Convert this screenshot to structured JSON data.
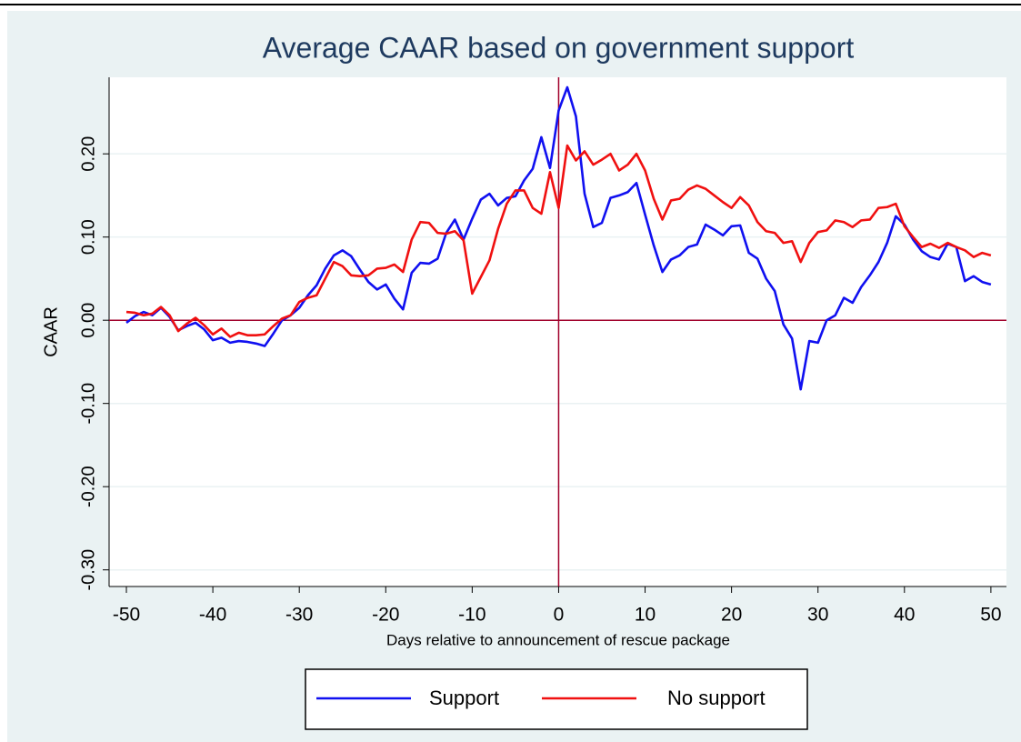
{
  "chart_data": {
    "type": "line",
    "title": "Average CAAR based on government support",
    "x_label": "Days relative to announcement of rescue package",
    "y_label": "CAAR",
    "x": [
      -50,
      -49,
      -48,
      -47,
      -46,
      -45,
      -44,
      -43,
      -42,
      -41,
      -40,
      -39,
      -38,
      -37,
      -36,
      -35,
      -34,
      -33,
      -32,
      -31,
      -30,
      -29,
      -28,
      -27,
      -26,
      -25,
      -24,
      -23,
      -22,
      -21,
      -20,
      -19,
      -18,
      -17,
      -16,
      -15,
      -14,
      -13,
      -12,
      -11,
      -10,
      -9,
      -8,
      -7,
      -6,
      -5,
      -4,
      -3,
      -2,
      -1,
      0,
      1,
      2,
      3,
      4,
      5,
      6,
      7,
      8,
      9,
      10,
      11,
      12,
      13,
      14,
      15,
      16,
      17,
      18,
      19,
      20,
      21,
      22,
      23,
      24,
      25,
      26,
      27,
      28,
      29,
      30,
      31,
      32,
      33,
      34,
      35,
      36,
      37,
      38,
      39,
      40,
      41,
      42,
      43,
      44,
      45,
      46,
      47,
      48,
      49,
      50
    ],
    "series": [
      {
        "name": "Support",
        "color": "#1010f0",
        "values": [
          -0.003,
          0.005,
          0.01,
          0.006,
          0.015,
          0.004,
          -0.012,
          -0.007,
          -0.003,
          -0.011,
          -0.024,
          -0.021,
          -0.027,
          -0.025,
          -0.026,
          -0.028,
          -0.031,
          -0.016,
          0.0,
          0.006,
          0.015,
          0.03,
          0.042,
          0.062,
          0.078,
          0.084,
          0.077,
          0.061,
          0.046,
          0.037,
          0.043,
          0.026,
          0.013,
          0.057,
          0.069,
          0.068,
          0.074,
          0.105,
          0.121,
          0.097,
          0.122,
          0.145,
          0.152,
          0.138,
          0.147,
          0.149,
          0.168,
          0.182,
          0.22,
          0.183,
          0.252,
          0.28,
          0.245,
          0.152,
          0.112,
          0.117,
          0.147,
          0.15,
          0.154,
          0.165,
          0.127,
          0.09,
          0.058,
          0.073,
          0.078,
          0.088,
          0.091,
          0.115,
          0.109,
          0.102,
          0.113,
          0.114,
          0.081,
          0.074,
          0.05,
          0.035,
          -0.005,
          -0.022,
          -0.083,
          -0.025,
          -0.027,
          0.0,
          0.006,
          0.027,
          0.021,
          0.04,
          0.054,
          0.07,
          0.093,
          0.125,
          0.115,
          0.097,
          0.083,
          0.076,
          0.073,
          0.092,
          0.088,
          0.047,
          0.053,
          0.046,
          0.043
        ]
      },
      {
        "name": "No support",
        "color": "#f01010",
        "values": [
          0.01,
          0.009,
          0.006,
          0.008,
          0.016,
          0.006,
          -0.013,
          -0.004,
          0.003,
          -0.006,
          -0.017,
          -0.01,
          -0.02,
          -0.015,
          -0.018,
          -0.018,
          -0.017,
          -0.007,
          0.002,
          0.006,
          0.022,
          0.027,
          0.03,
          0.05,
          0.07,
          0.065,
          0.054,
          0.053,
          0.054,
          0.062,
          0.063,
          0.067,
          0.058,
          0.097,
          0.118,
          0.117,
          0.105,
          0.104,
          0.107,
          0.096,
          0.032,
          0.052,
          0.072,
          0.11,
          0.14,
          0.156,
          0.156,
          0.135,
          0.128,
          0.178,
          0.135,
          0.21,
          0.192,
          0.203,
          0.187,
          0.193,
          0.2,
          0.18,
          0.187,
          0.2,
          0.18,
          0.146,
          0.121,
          0.144,
          0.146,
          0.157,
          0.162,
          0.158,
          0.15,
          0.142,
          0.135,
          0.148,
          0.138,
          0.118,
          0.107,
          0.105,
          0.093,
          0.095,
          0.07,
          0.093,
          0.106,
          0.108,
          0.12,
          0.118,
          0.112,
          0.12,
          0.121,
          0.135,
          0.136,
          0.14,
          0.113,
          0.1,
          0.088,
          0.092,
          0.087,
          0.093,
          0.088,
          0.084,
          0.076,
          0.081,
          0.078
        ]
      }
    ],
    "xlim": [
      -52,
      51.8
    ],
    "ylim": [
      -0.32,
      0.292
    ],
    "xticks": [
      -50,
      -40,
      -30,
      -20,
      -10,
      0,
      10,
      20,
      30,
      40,
      50
    ],
    "yticks": [
      {
        "value": -0.3,
        "label": "-0.30"
      },
      {
        "value": -0.2,
        "label": "-0.20"
      },
      {
        "value": -0.1,
        "label": "-0.10"
      },
      {
        "value": 0,
        "label": "0.00"
      },
      {
        "value": 0.1,
        "label": "0.10"
      },
      {
        "value": 0.2,
        "label": "0.20"
      }
    ],
    "grid": true,
    "xline": 0,
    "yline": 0,
    "refline_color": "#a0002a",
    "legend": "bottom"
  }
}
